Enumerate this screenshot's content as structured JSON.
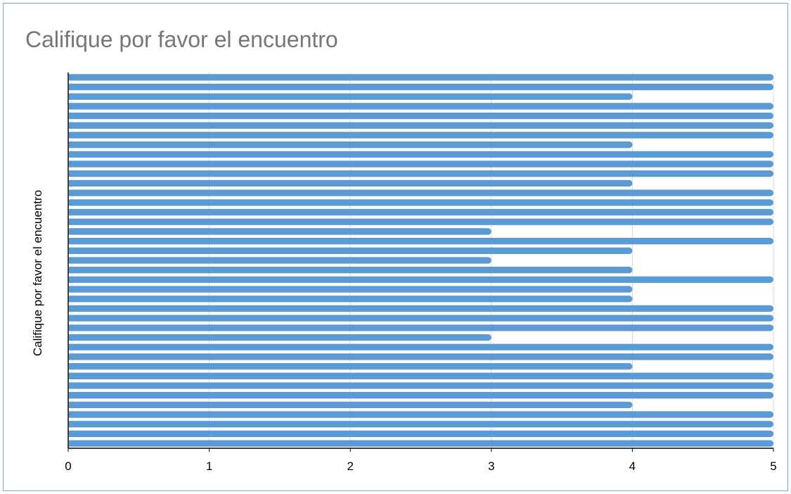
{
  "chart_data": {
    "type": "bar",
    "orientation": "horizontal",
    "title": "Califique por favor el encuentro",
    "xlabel": "",
    "ylabel": "Califique por favor el encuentro",
    "xlim": [
      0,
      5
    ],
    "xticks": [
      "0",
      "1",
      "2",
      "3",
      "4",
      "5"
    ],
    "grid": true,
    "legend": "none",
    "bar_color": "#5b9bd5",
    "values": [
      5,
      5,
      4,
      5,
      5,
      5,
      5,
      4,
      5,
      5,
      5,
      4,
      5,
      5,
      5,
      5,
      3,
      5,
      4,
      3,
      4,
      5,
      4,
      4,
      5,
      5,
      5,
      3,
      5,
      5,
      4,
      5,
      5,
      5,
      4,
      5,
      5,
      5,
      5
    ]
  }
}
